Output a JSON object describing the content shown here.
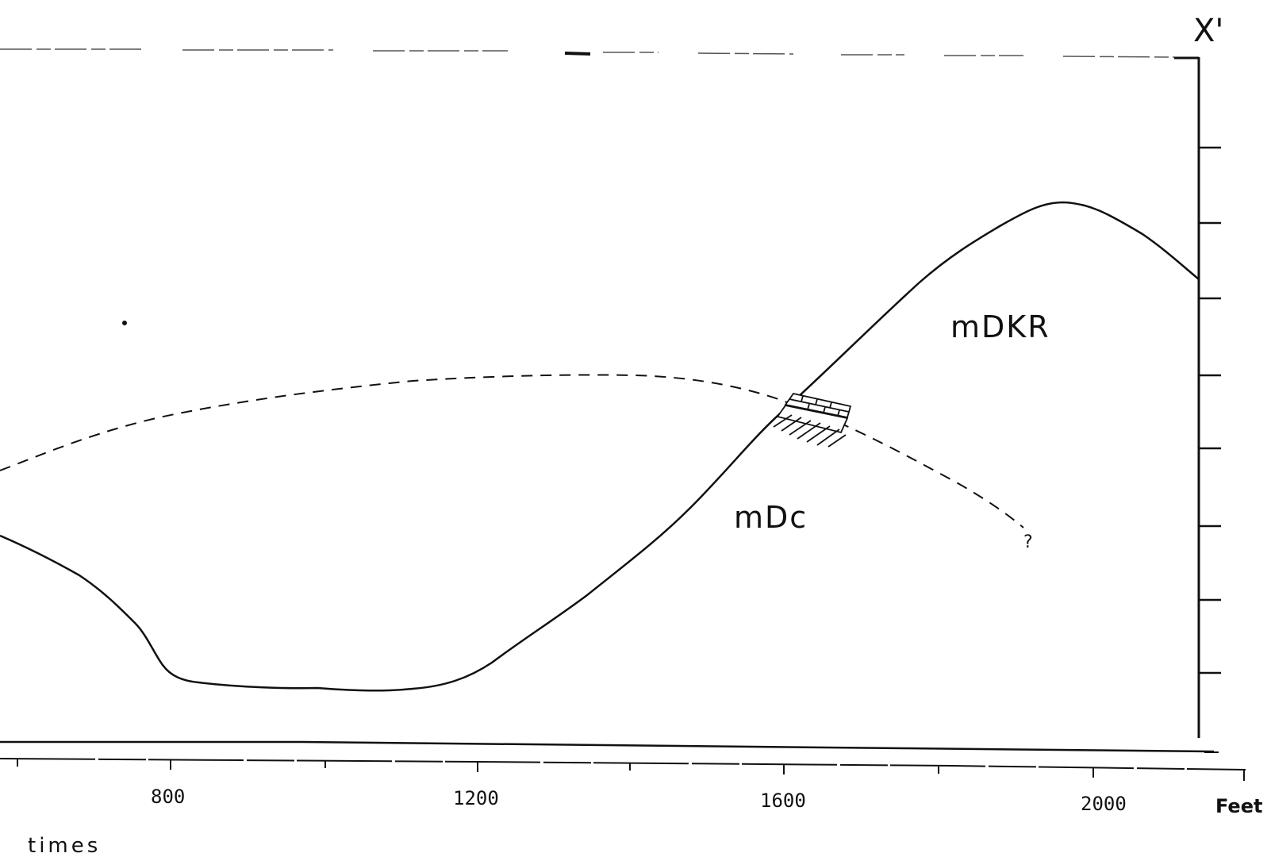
{
  "section_end_label": "X'",
  "distance_axis": {
    "tick_labels": [
      "800",
      "1200",
      "1600",
      "2000"
    ],
    "unit": "Feet",
    "note": "times"
  },
  "units": {
    "upper": "mDKR",
    "lower": "mDc",
    "contact_query": "?"
  },
  "colors": {
    "ink": "#111111",
    "background": "#ffffff"
  }
}
